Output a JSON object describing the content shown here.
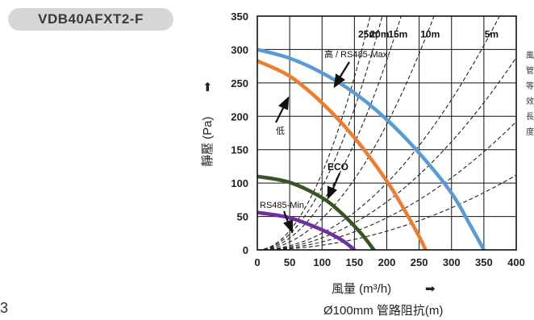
{
  "model_badge": "VDB40AFXT2-F",
  "page_number": "3",
  "chart_data": {
    "type": "line",
    "title": "",
    "xlabel": "風量 (m³/h)",
    "xlabel_arrow": "➡",
    "ylabel": "靜壓 (Pa)",
    "ylabel_arrow": "➡",
    "footnote": "Ø100mm 管路阻抗(m)",
    "side_note": [
      "風",
      "管",
      "等",
      "效",
      "長",
      "度"
    ],
    "xlim": [
      0,
      400
    ],
    "ylim": [
      0,
      350
    ],
    "x_ticks": [
      "0",
      "50",
      "100",
      "150",
      "200",
      "250",
      "300",
      "350",
      "400"
    ],
    "y_ticks": [
      "0",
      "50",
      "100",
      "150",
      "200",
      "250",
      "300",
      "350"
    ],
    "grid": true,
    "series": [
      {
        "name": "高 / RS485-Max.",
        "color": "#5b9bd5",
        "x": [
          0,
          50,
          100,
          150,
          200,
          250,
          300,
          330,
          350
        ],
        "y": [
          300,
          287,
          265,
          235,
          195,
          145,
          85,
          35,
          0
        ]
      },
      {
        "name": "低",
        "color": "#ed7d31",
        "x": [
          0,
          50,
          100,
          150,
          200,
          230,
          250,
          260
        ],
        "y": [
          283,
          260,
          220,
          168,
          103,
          55,
          20,
          0
        ]
      },
      {
        "name": "ECO",
        "color": "#375623",
        "x": [
          0,
          50,
          100,
          130,
          160,
          180
        ],
        "y": [
          110,
          101,
          78,
          55,
          25,
          0
        ]
      },
      {
        "name": "RS485-Min.",
        "color": "#7030a0",
        "x": [
          0,
          50,
          100,
          130,
          150
        ],
        "y": [
          56,
          48,
          30,
          15,
          0
        ]
      }
    ],
    "resistance_curves": [
      {
        "label": "25m",
        "k": 0.0115
      },
      {
        "label": "20m",
        "k": 0.0094
      },
      {
        "label": "15m",
        "k": 0.0071
      },
      {
        "label": "10m",
        "k": 0.0047
      },
      {
        "label": "5m",
        "k": 0.0025
      },
      {
        "label": "",
        "k": 0.0018
      },
      {
        "label": "",
        "k": 0.0012
      },
      {
        "label": "",
        "k": 0.0007
      }
    ]
  }
}
